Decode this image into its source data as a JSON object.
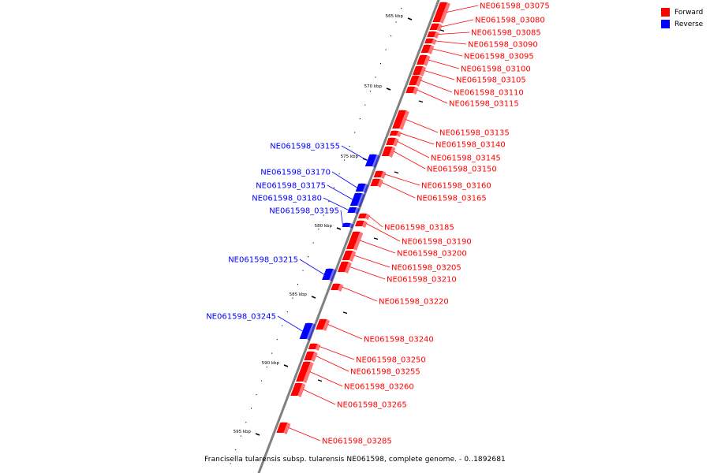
{
  "caption": "Francisella tularensis subsp. tularensis NE061598, complete genome. - 0..1892681",
  "legend": [
    {
      "label": "Forward",
      "color": "#ff0000"
    },
    {
      "label": "Reverse",
      "color": "#0000ff"
    }
  ],
  "colors": {
    "forward": "#ff0000",
    "reverse": "#0000ff",
    "backbone": "#808080",
    "ticks": "#000000"
  },
  "scale_labels": [
    "565 kbp",
    "570 kbp",
    "575 kbp",
    "580 kbp",
    "585 kbp",
    "590 kbp",
    "595 kbp"
  ],
  "forward_genes": [
    "NE061598_03075",
    "NE061598_03080",
    "NE061598_03085",
    "NE061598_03090",
    "NE061598_03095",
    "NE061598_03100",
    "NE061598_03105",
    "NE061598_03110",
    "NE061598_03115",
    "NE061598_03135",
    "NE061598_03140",
    "NE061598_03145",
    "NE061598_03150",
    "NE061598_03160",
    "NE061598_03165",
    "NE061598_03185",
    "NE061598_03190",
    "NE061598_03200",
    "NE061598_03205",
    "NE061598_03210",
    "NE061598_03220",
    "NE061598_03240",
    "NE061598_03250",
    "NE061598_03255",
    "NE061598_03260",
    "NE061598_03265",
    "NE061598_03285"
  ],
  "reverse_genes": [
    "NE061598_03155",
    "NE061598_03170",
    "NE061598_03175",
    "NE061598_03180",
    "NE061598_03195",
    "NE061598_03215",
    "NE061598_03245"
  ]
}
